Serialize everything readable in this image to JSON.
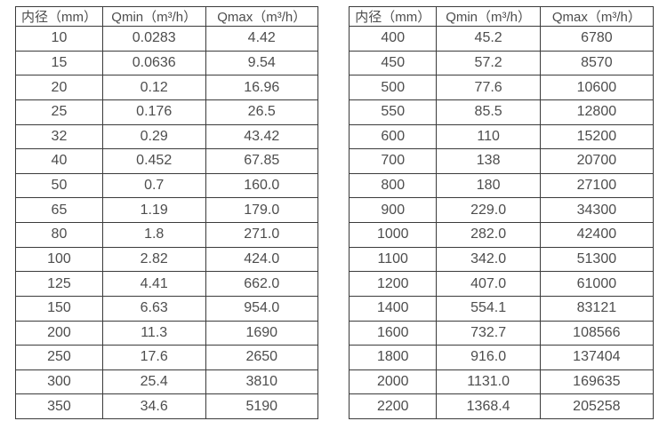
{
  "page": {
    "background_color": "#ffffff",
    "border_color": "#3b3b3b",
    "text_color": "#4d4d4d",
    "description": "Two side-by-side flow meter specification tables: inner diameter vs minimum and maximum flow rate"
  },
  "tables": [
    {
      "name": "flow-table-small-diameters",
      "headers": [
        "内径（mm）",
        "Qmin（m³/h）",
        "Qmax（m³/h）"
      ],
      "rows": [
        [
          "10",
          "0.0283",
          "4.42"
        ],
        [
          "15",
          "0.0636",
          "9.54"
        ],
        [
          "20",
          "0.12",
          "16.96"
        ],
        [
          "25",
          "0.176",
          "26.5"
        ],
        [
          "32",
          "0.29",
          "43.42"
        ],
        [
          "40",
          "0.452",
          "67.85"
        ],
        [
          "50",
          "0.7",
          "160.0"
        ],
        [
          "65",
          "1.19",
          "179.0"
        ],
        [
          "80",
          "1.8",
          "271.0"
        ],
        [
          "100",
          "2.82",
          "424.0"
        ],
        [
          "125",
          "4.41",
          "662.0"
        ],
        [
          "150",
          "6.63",
          "954.0"
        ],
        [
          "200",
          "11.3",
          "1690"
        ],
        [
          "250",
          "17.6",
          "2650"
        ],
        [
          "300",
          "25.4",
          "3810"
        ],
        [
          "350",
          "34.6",
          "5190"
        ]
      ]
    },
    {
      "name": "flow-table-large-diameters",
      "headers": [
        "内径（mm）",
        "Qmin（m³/h）",
        "Qmax（m³/h）"
      ],
      "rows": [
        [
          "400",
          "45.2",
          "6780"
        ],
        [
          "450",
          "57.2",
          "8570"
        ],
        [
          "500",
          "77.6",
          "10600"
        ],
        [
          "550",
          "85.5",
          "12800"
        ],
        [
          "600",
          "110",
          "15200"
        ],
        [
          "700",
          "138",
          "20700"
        ],
        [
          "800",
          "180",
          "27100"
        ],
        [
          "900",
          "229.0",
          "34300"
        ],
        [
          "1000",
          "282.0",
          "42400"
        ],
        [
          "1100",
          "342.0",
          "51300"
        ],
        [
          "1200",
          "407.0",
          "61000"
        ],
        [
          "1400",
          "554.1",
          "83121"
        ],
        [
          "1600",
          "732.7",
          "108566"
        ],
        [
          "1800",
          "916.0",
          "137404"
        ],
        [
          "2000",
          "1131.0",
          "169635"
        ],
        [
          "2200",
          "1368.4",
          "205258"
        ]
      ]
    }
  ]
}
